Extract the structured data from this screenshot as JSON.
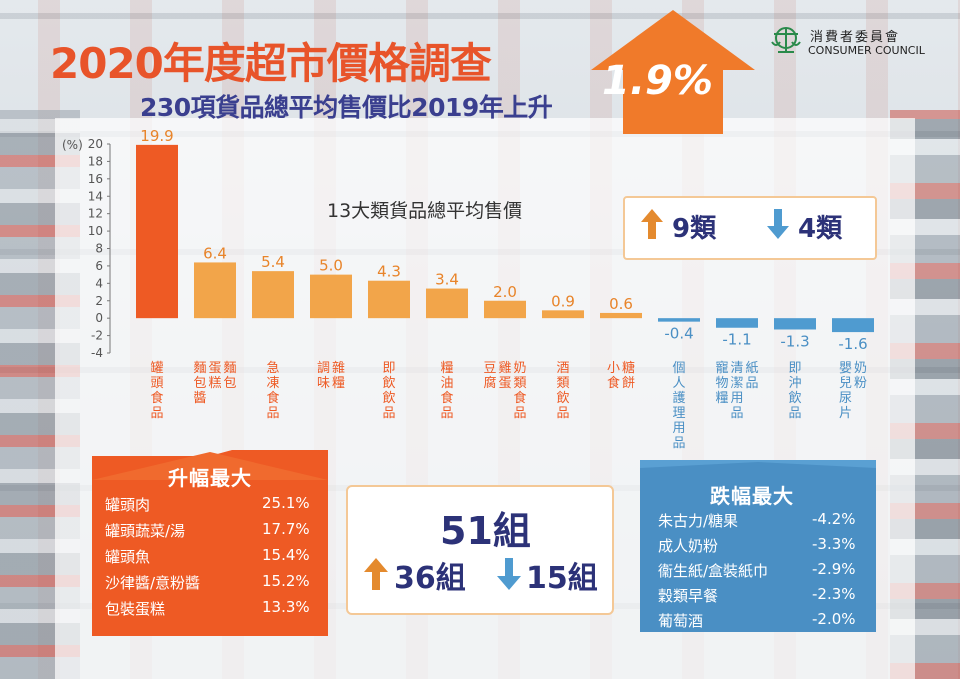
{
  "header": {
    "title": "2020年度超市價格調查",
    "subtitle": "230項貨品總平均售價比2019年上升",
    "headline_change": "1.9%",
    "colors": {
      "title": "#e8542a",
      "subtitle": "#3a3f8f",
      "arrow": "#f07a2a"
    }
  },
  "logo": {
    "name_zh": "消費者委員會",
    "name_en": "CONSUMER COUNCIL"
  },
  "chart_data": {
    "type": "bar",
    "title": "13大類貨品總平均售價",
    "ylabel": "(%)",
    "ylim": [
      -4,
      20
    ],
    "yticks": [
      20,
      18,
      16,
      14,
      12,
      10,
      8,
      6,
      4,
      2,
      0,
      -2,
      -4
    ],
    "categories": [
      "罐頭食品",
      "麵包 蛋糕 麵包醬",
      "急凍食品",
      "雜糧 調味",
      "即飲飲品",
      "糧油食品",
      "奶類食品 雞蛋 豆腐",
      "酒類飲品",
      "糖餅 小食",
      "個人護理用品",
      "紙品 清潔用品 寵物糧",
      "即沖飲品",
      "奶粉 嬰兒尿片"
    ],
    "category_columns": [
      [
        "罐頭食品"
      ],
      [
        "麵包",
        "蛋糕",
        "麵包醬"
      ],
      [
        "急凍食品"
      ],
      [
        "雜糧",
        "調味"
      ],
      [
        "即飲飲品"
      ],
      [
        "糧油食品"
      ],
      [
        "奶類食品",
        "雞蛋",
        "豆腐"
      ],
      [
        "酒類飲品"
      ],
      [
        "糖餅",
        "小食"
      ],
      [
        "個人護理用品"
      ],
      [
        "紙品",
        "清潔用品",
        "寵物糧"
      ],
      [
        "即沖飲品"
      ],
      [
        "奶粉",
        "嬰兒尿片"
      ]
    ],
    "values": [
      19.9,
      6.4,
      5.4,
      5.0,
      4.3,
      3.4,
      2.0,
      0.9,
      0.6,
      -0.4,
      -1.1,
      -1.3,
      -1.6
    ],
    "value_labels": [
      "19.9",
      "6.4",
      "5.4",
      "5.0",
      "4.3",
      "3.4",
      "2.0",
      "0.9",
      "0.6",
      "-0.4",
      "-1.1",
      "-1.3",
      "-1.6"
    ],
    "colors": {
      "highest": "#ee5a24",
      "positive": "#f2a54a",
      "negative": "#4f9bd0"
    },
    "grid": false,
    "legend": "none"
  },
  "category_summary": {
    "up": "9類",
    "down": "4類"
  },
  "largest_increase": {
    "title": "升幅最大",
    "items": [
      {
        "name": "罐頭肉",
        "value": "25.1%"
      },
      {
        "name": "罐頭蔬菜/湯",
        "value": "17.7%"
      },
      {
        "name": "罐頭魚",
        "value": "15.4%"
      },
      {
        "name": "沙律醬/意粉醬",
        "value": "15.2%"
      },
      {
        "name": "包裝蛋糕",
        "value": "13.3%"
      }
    ]
  },
  "largest_decrease": {
    "title": "跌幅最大",
    "items": [
      {
        "name": "朱古力/糖果",
        "value": "-4.2%"
      },
      {
        "name": "成人奶粉",
        "value": "-3.3%"
      },
      {
        "name": "衞生紙/盒裝紙巾",
        "value": "-2.9%"
      },
      {
        "name": "穀類早餐",
        "value": "-2.3%"
      },
      {
        "name": "葡萄酒",
        "value": "-2.0%"
      }
    ]
  },
  "groups": {
    "total": "51組",
    "up": "36組",
    "down": "15組"
  }
}
